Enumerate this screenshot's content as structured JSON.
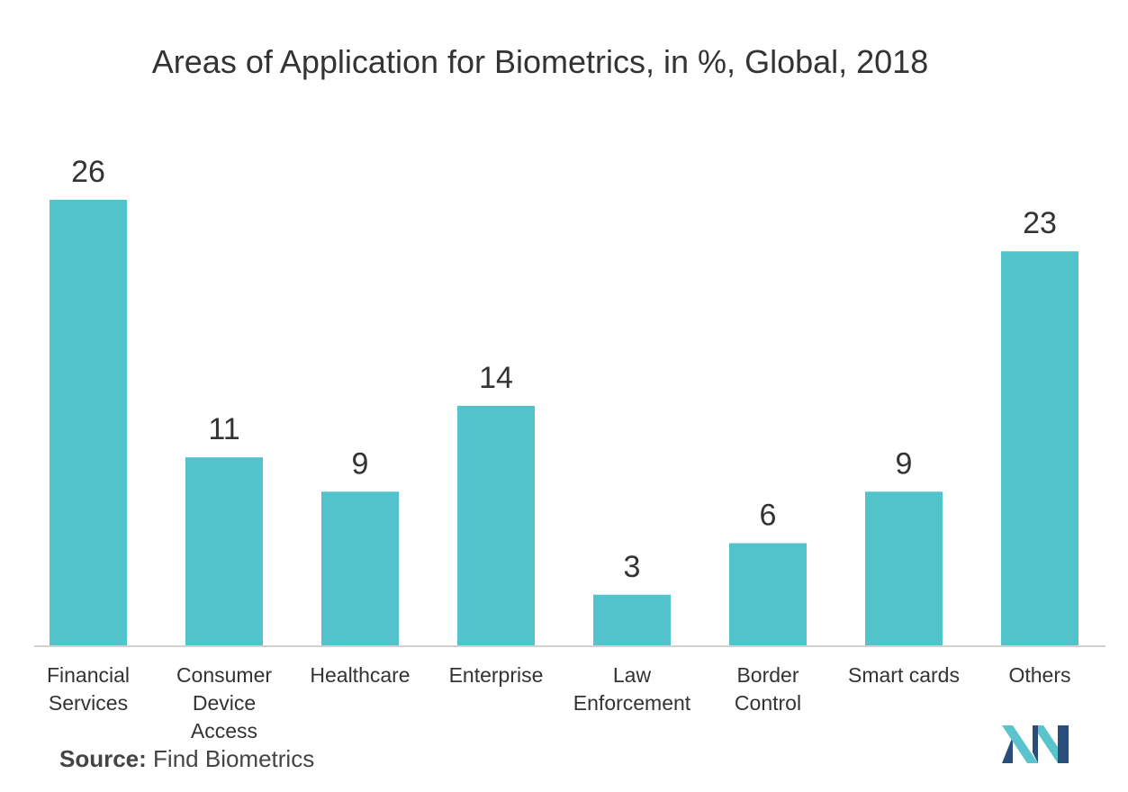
{
  "chart_data": {
    "type": "bar",
    "title": "Areas of Application for Biometrics, in %, Global, 2018",
    "categories": [
      [
        "Financial",
        "Services"
      ],
      [
        "Consumer",
        "Device",
        "Access"
      ],
      [
        "Healthcare"
      ],
      [
        "Enterprise"
      ],
      [
        "Law",
        "Enforcement"
      ],
      [
        "Border",
        "Control"
      ],
      [
        "Smart cards"
      ],
      [
        "Others"
      ]
    ],
    "values": [
      26,
      11,
      9,
      14,
      3,
      6,
      9,
      23
    ],
    "ylim": [
      0,
      26
    ],
    "xlabel": "",
    "ylabel": "",
    "grid": false,
    "bar_color": "#52c3ca",
    "axis_color": "#d0d0d0"
  },
  "source": {
    "label": "Source:",
    "text": "Find Biometrics"
  },
  "logo": {
    "name": "company-logo",
    "colors": [
      "#2b4d7a",
      "#5bc3cc"
    ]
  }
}
